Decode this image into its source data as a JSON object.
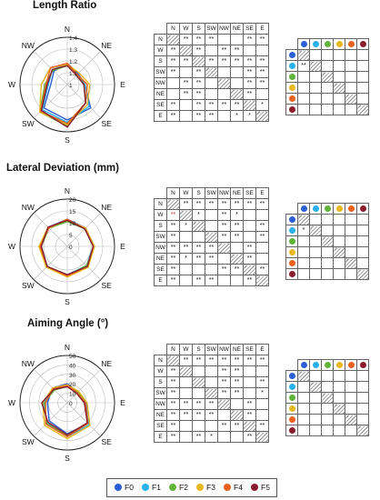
{
  "colors": {
    "F0": "#2c5fd4",
    "F1": "#2ab0ea",
    "F2": "#60b43a",
    "F3": "#e8b820",
    "F4": "#e8621e",
    "F5": "#8a1c2c"
  },
  "series_names": [
    "F0",
    "F1",
    "F2",
    "F3",
    "F4",
    "F5"
  ],
  "directions": [
    "N",
    "NE",
    "E",
    "SE",
    "S",
    "SW",
    "W",
    "NW"
  ],
  "matrix_labels": [
    "N",
    "W",
    "S",
    "SW",
    "NW",
    "NE",
    "SE",
    "E"
  ],
  "chart_data": [
    {
      "type": "radar",
      "title": "Length Ratio",
      "rlim": [
        1.0,
        1.4
      ],
      "rticks": [
        "1",
        "1.1",
        "1.2",
        "1.3",
        "1.4"
      ],
      "series": [
        {
          "name": "F0",
          "values": [
            1.18,
            1.13,
            1.15,
            1.28,
            1.3,
            1.28,
            1.14,
            1.16
          ]
        },
        {
          "name": "F1",
          "values": [
            1.17,
            1.11,
            1.15,
            1.26,
            1.32,
            1.3,
            1.16,
            1.18
          ]
        },
        {
          "name": "F2",
          "values": [
            1.16,
            1.12,
            1.14,
            1.22,
            1.35,
            1.33,
            1.19,
            1.17
          ]
        },
        {
          "name": "F3",
          "values": [
            1.17,
            1.14,
            1.19,
            1.24,
            1.34,
            1.33,
            1.22,
            1.2
          ]
        },
        {
          "name": "F4",
          "values": [
            1.18,
            1.12,
            1.17,
            1.22,
            1.33,
            1.32,
            1.18,
            1.2
          ]
        },
        {
          "name": "F5",
          "values": [
            1.16,
            1.11,
            1.14,
            1.22,
            1.36,
            1.31,
            1.17,
            1.18
          ]
        }
      ]
    },
    {
      "type": "radar",
      "title": "Lateral Deviation (mm)",
      "rlim": [
        0,
        20
      ],
      "rticks": [
        "0",
        "5",
        "10",
        "15",
        "20"
      ],
      "series": [
        {
          "name": "F0",
          "values": [
            11.5,
            11.0,
            11.5,
            12.0,
            12.5,
            12.5,
            11.5,
            11.5
          ]
        },
        {
          "name": "F1",
          "values": [
            11.0,
            10.5,
            11.0,
            11.5,
            12.0,
            12.0,
            11.0,
            11.5
          ]
        },
        {
          "name": "F2",
          "values": [
            10.5,
            10.5,
            11.5,
            11.5,
            12.5,
            12.0,
            11.0,
            11.0
          ]
        },
        {
          "name": "F3",
          "values": [
            11.0,
            11.0,
            11.5,
            12.5,
            13.0,
            12.5,
            12.0,
            11.5
          ]
        },
        {
          "name": "F4",
          "values": [
            11.5,
            10.5,
            11.0,
            12.0,
            12.5,
            12.0,
            11.5,
            11.0
          ]
        },
        {
          "name": "F5",
          "values": [
            11.0,
            10.5,
            11.0,
            12.0,
            12.0,
            12.0,
            11.0,
            11.5
          ]
        }
      ]
    },
    {
      "type": "radar",
      "title": "Aiming Angle (°)",
      "rlim": [
        0,
        50
      ],
      "rticks": [
        "0",
        "10",
        "20",
        "30",
        "40",
        "50"
      ],
      "series": [
        {
          "name": "F0",
          "values": [
            20,
            16,
            20,
            31,
            33,
            27,
            21,
            22
          ]
        },
        {
          "name": "F1",
          "values": [
            18,
            15,
            18,
            33,
            36,
            30,
            25,
            20
          ]
        },
        {
          "name": "F2",
          "values": [
            17,
            16,
            19,
            30,
            35,
            31,
            24,
            19
          ]
        },
        {
          "name": "F3",
          "values": [
            19,
            17,
            21,
            34,
            38,
            34,
            26,
            22
          ]
        },
        {
          "name": "F4",
          "values": [
            18,
            15,
            19,
            31,
            36,
            32,
            23,
            21
          ]
        },
        {
          "name": "F5",
          "values": [
            17,
            14,
            18,
            30,
            34,
            29,
            27,
            20
          ]
        }
      ]
    }
  ],
  "matrices": [
    [
      [
        "",
        "**",
        "**",
        "**",
        "",
        "",
        "**",
        "**"
      ],
      [
        "**",
        "",
        "**",
        "",
        "**",
        "**",
        "",
        ""
      ],
      [
        "**",
        "**",
        "",
        "**",
        "**",
        "**",
        "**",
        "**"
      ],
      [
        "**",
        "",
        "**",
        "",
        "",
        "",
        "**",
        "**"
      ],
      [
        "",
        "**",
        "**",
        "",
        "",
        "",
        "**",
        "**"
      ],
      [
        "",
        "**",
        "**",
        "",
        "",
        "",
        "**",
        ""
      ],
      [
        "**",
        "",
        "**",
        "**",
        "**",
        "**",
        "",
        "*"
      ],
      [
        "**",
        "",
        "**",
        "**",
        "",
        "*",
        "*",
        ""
      ]
    ],
    [
      [
        "",
        "**",
        "**",
        "**",
        "**",
        "**",
        "**",
        "**"
      ],
      [
        "**",
        "",
        "*",
        "",
        "**",
        "*",
        "",
        ""
      ],
      [
        "**",
        "*",
        "",
        "",
        "**",
        "**",
        "",
        "**"
      ],
      [
        "**",
        "",
        "",
        "",
        "**",
        "**",
        "",
        "**"
      ],
      [
        "**",
        "**",
        "**",
        "**",
        "",
        "",
        "**",
        ""
      ],
      [
        "**",
        "*",
        "**",
        "**",
        "",
        "",
        "**",
        ""
      ],
      [
        "**",
        "",
        "",
        "",
        "**",
        "**",
        "",
        "**"
      ],
      [
        "**",
        "",
        "**",
        "**",
        "",
        "",
        "**",
        ""
      ]
    ],
    [
      [
        "",
        "**",
        "**",
        "**",
        "**",
        "**",
        "**",
        "**"
      ],
      [
        "**",
        "",
        "",
        "",
        "**",
        "**",
        "",
        ""
      ],
      [
        "**",
        "",
        "",
        "",
        "**",
        "**",
        "",
        "**"
      ],
      [
        "**",
        "",
        "",
        "",
        "**",
        "**",
        "",
        "*"
      ],
      [
        "**",
        "**",
        "**",
        "**",
        "",
        "",
        "**",
        ""
      ],
      [
        "**",
        "**",
        "**",
        "**",
        "",
        "",
        "**",
        ""
      ],
      [
        "**",
        "",
        "",
        "",
        "**",
        "**",
        "",
        "**"
      ],
      [
        "**",
        "",
        "**",
        "*",
        "",
        "",
        "**",
        ""
      ]
    ]
  ],
  "dot_matrices": [
    [
      [
        "",
        "",
        "",
        "",
        "",
        ""
      ],
      [
        "**",
        "",
        "",
        "",
        "",
        ""
      ],
      [
        "",
        "",
        "",
        "",
        "",
        ""
      ],
      [
        "",
        "",
        "",
        "",
        "",
        ""
      ],
      [
        "",
        "",
        "",
        "",
        "",
        ""
      ],
      [
        "",
        "",
        "",
        "",
        "",
        ""
      ]
    ],
    [
      [
        "",
        "",
        "",
        "",
        "",
        ""
      ],
      [
        "*",
        "",
        "",
        "",
        "",
        ""
      ],
      [
        "",
        "",
        "",
        "",
        "",
        ""
      ],
      [
        "",
        "",
        "",
        "",
        "",
        ""
      ],
      [
        "",
        "",
        "",
        "",
        "",
        ""
      ],
      [
        "",
        "",
        "",
        "",
        "",
        ""
      ]
    ],
    [
      [
        "",
        "",
        "",
        "",
        "",
        ""
      ],
      [
        "",
        "",
        "",
        "",
        "",
        ""
      ],
      [
        "",
        "",
        "",
        "",
        "",
        ""
      ],
      [
        "",
        "",
        "",
        "",
        "",
        ""
      ],
      [
        "",
        "",
        "",
        "",
        "",
        ""
      ],
      [
        "",
        "",
        "",
        "",
        "",
        ""
      ]
    ]
  ]
}
